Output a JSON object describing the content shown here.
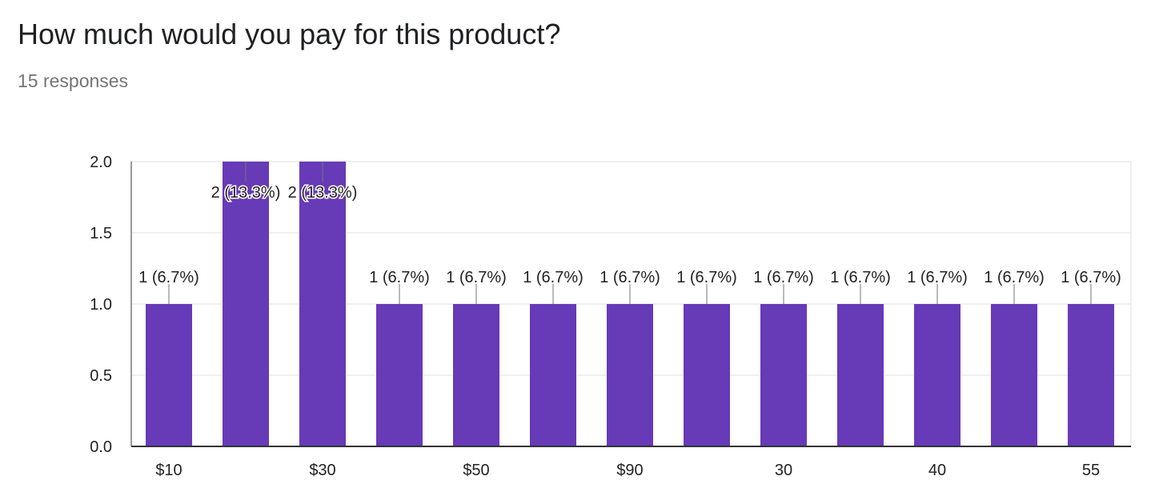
{
  "header": {
    "title": "How much would you pay for this product?",
    "responses": "15 responses"
  },
  "colors": {
    "bar": "#673AB7",
    "grid": "#E0E0E0",
    "axis": "#333333"
  },
  "chart_data": {
    "type": "bar",
    "title": "How much would you pay for this product?",
    "subtitle": "15 responses",
    "categories": [
      "$10",
      "",
      "$30",
      "",
      "$50",
      "",
      "$90",
      "",
      "30",
      "",
      "40",
      "",
      "55"
    ],
    "values": [
      1,
      2,
      2,
      1,
      1,
      1,
      1,
      1,
      1,
      1,
      1,
      1,
      1
    ],
    "data_labels": [
      "1 (6.7%)",
      "2 (13.3%)",
      "2 (13.3%)",
      "1 (6.7%)",
      "1 (6.7%)",
      "1 (6.7%)",
      "1 (6.7%)",
      "1 (6.7%)",
      "1 (6.7%)",
      "1 (6.7%)",
      "1 (6.7%)",
      "1 (6.7%)",
      "1 (6.7%)"
    ],
    "yticks": [
      "0.0",
      "0.5",
      "1.0",
      "1.5",
      "2.0"
    ],
    "ylim": [
      0,
      2
    ],
    "xlabel": "",
    "ylabel": "",
    "grid": true,
    "legend": "none"
  }
}
